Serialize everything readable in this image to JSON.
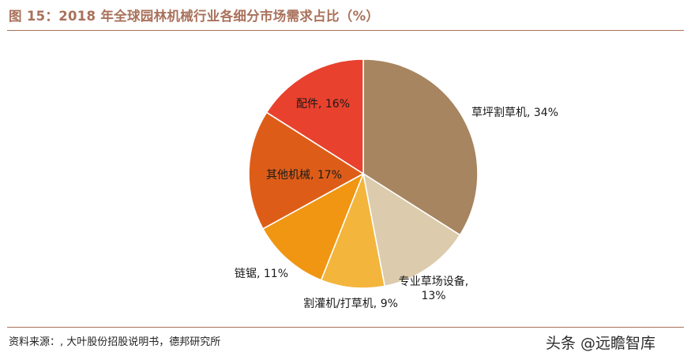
{
  "header": {
    "title": "图 15：2018 年全球园林机械行业各细分市场需求占比（%）"
  },
  "chart_data": {
    "type": "pie",
    "title": "图 15：2018 年全球园林机械行业各细分市场需求占比（%）",
    "categories": [
      "草坪割草机",
      "专业草场设备",
      "割灌机/打草机",
      "链锯",
      "其他机械",
      "配件"
    ],
    "values": [
      34,
      13,
      9,
      11,
      17,
      16
    ],
    "unit": "%",
    "colors": [
      "#a78560",
      "#dccbac",
      "#f3b53c",
      "#f09613",
      "#dd5d18",
      "#e8412d"
    ],
    "data_labels": [
      [
        "草坪割草机, 34%"
      ],
      [
        "专业草场设备,",
        "13%"
      ],
      [
        "割灌机/打草机, 9%"
      ],
      [
        "链锯, 11%"
      ],
      [
        "其他机械, 17%"
      ],
      [
        "配件, 16%"
      ]
    ],
    "legend": "none"
  },
  "footer": {
    "source": "资料来源：, 大叶股份招股说明书，德邦研究所",
    "watermark": "头条 @远瞻智库"
  }
}
